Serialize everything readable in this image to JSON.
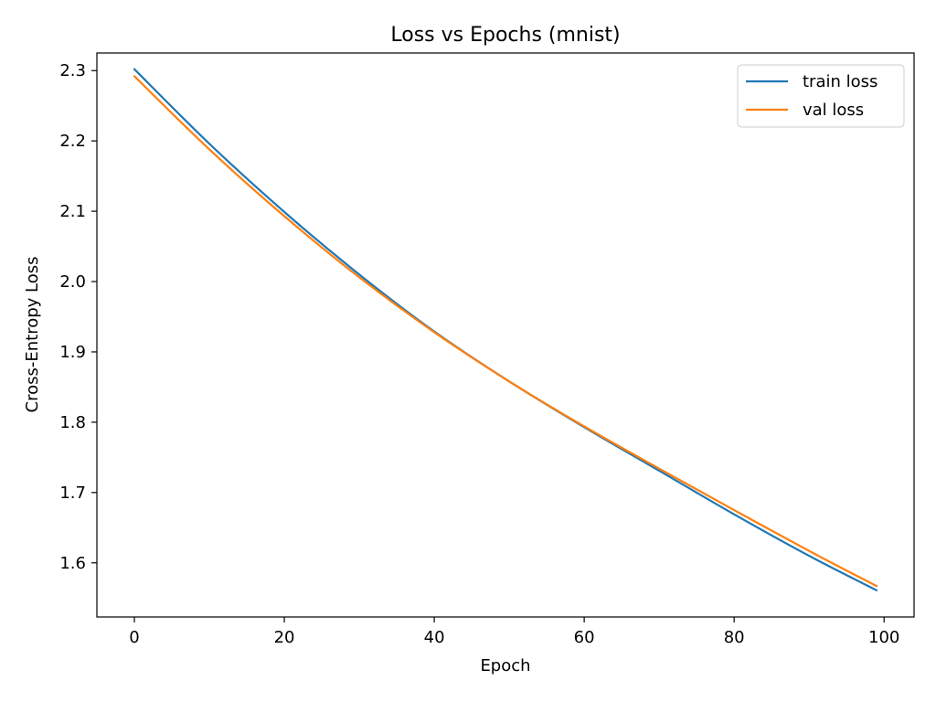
{
  "chart_data": {
    "type": "line",
    "title": "Loss vs Epochs (mnist)",
    "xlabel": "Epoch",
    "ylabel": "Cross-Entropy Loss",
    "xlim": [
      -5,
      104
    ],
    "ylim": [
      1.523,
      2.325
    ],
    "xticks": [
      0,
      20,
      40,
      60,
      80,
      100
    ],
    "xtick_labels": [
      "0",
      "20",
      "40",
      "60",
      "80",
      "100"
    ],
    "yticks": [
      1.6,
      1.7,
      1.8,
      1.9,
      2.0,
      2.1,
      2.2,
      2.3
    ],
    "ytick_labels": [
      "1.6",
      "1.7",
      "1.8",
      "1.9",
      "2.0",
      "2.1",
      "2.2",
      "2.3"
    ],
    "grid": false,
    "legend_position": "top-right",
    "x": [
      0,
      10,
      20,
      30,
      40,
      50,
      60,
      70,
      80,
      90,
      99
    ],
    "series": [
      {
        "name": "train loss",
        "color": "#1f77b4",
        "values": [
          2.302,
          2.196,
          2.099,
          2.01,
          1.929,
          1.858,
          1.793,
          1.731,
          1.669,
          1.61,
          1.561
        ]
      },
      {
        "name": "val loss",
        "color": "#ff7f0e",
        "values": [
          2.292,
          2.188,
          2.093,
          2.006,
          1.928,
          1.858,
          1.794,
          1.734,
          1.675,
          1.617,
          1.567
        ]
      }
    ]
  }
}
